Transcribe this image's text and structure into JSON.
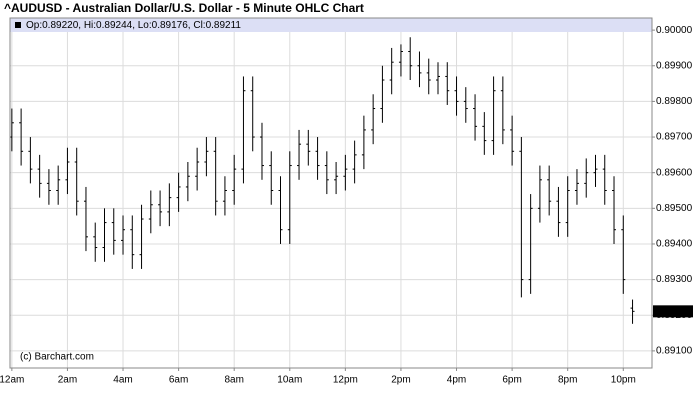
{
  "chart_data": {
    "type": "ohlc",
    "title": "^AUDUSD - Australian Dollar/U.S. Dollar - 5 Minute OHLC Chart",
    "legend_text": "Op:0.89220, Hi:0.89244, Lo:0.89176, Cl:0.89211",
    "credit": "(c) Barchart.com",
    "color": "#000000",
    "grid": true,
    "x": [
      0,
      20,
      40,
      60,
      80,
      100,
      120,
      140,
      160,
      180,
      200,
      220,
      240,
      260,
      280,
      300,
      320,
      340,
      360,
      380,
      400,
      420,
      440,
      460,
      480,
      500,
      520,
      540,
      560,
      580,
      600,
      620,
      640,
      660,
      680,
      700,
      720,
      740,
      760,
      780,
      800,
      820,
      840,
      860,
      880,
      900,
      920,
      940,
      960,
      980,
      1000,
      1020,
      1040,
      1060,
      1080,
      1100,
      1120,
      1140,
      1160,
      1180,
      1200,
      1220,
      1240,
      1260,
      1280,
      1300,
      1320,
      1340
    ],
    "open": [
      0.897,
      0.8974,
      0.8966,
      0.8961,
      0.8957,
      0.8955,
      0.8958,
      0.8963,
      0.8952,
      0.8942,
      0.8939,
      0.8946,
      0.8941,
      0.8944,
      0.8937,
      0.8947,
      0.8951,
      0.8949,
      0.8953,
      0.8956,
      0.8959,
      0.8963,
      0.8966,
      0.8952,
      0.8955,
      0.8961,
      0.8983,
      0.897,
      0.8962,
      0.8955,
      0.8944,
      0.8962,
      0.8968,
      0.8966,
      0.8962,
      0.8958,
      0.8959,
      0.8961,
      0.8965,
      0.8972,
      0.8978,
      0.8986,
      0.8991,
      0.8994,
      0.899,
      0.8988,
      0.8986,
      0.8987,
      0.8983,
      0.898,
      0.8978,
      0.8973,
      0.8969,
      0.8983,
      0.8972,
      0.8966,
      0.893,
      0.895,
      0.8958,
      0.8952,
      0.8946,
      0.8955,
      0.8957,
      0.896,
      0.8961,
      0.8955,
      0.8944,
      0.8922
    ],
    "high": [
      0.8978,
      0.8978,
      0.897,
      0.8965,
      0.8961,
      0.8962,
      0.8967,
      0.8967,
      0.8956,
      0.8946,
      0.895,
      0.895,
      0.8948,
      0.8948,
      0.8951,
      0.8955,
      0.8955,
      0.8957,
      0.896,
      0.8963,
      0.8967,
      0.897,
      0.897,
      0.8959,
      0.8965,
      0.8987,
      0.8987,
      0.8974,
      0.8966,
      0.8959,
      0.8966,
      0.8972,
      0.8972,
      0.897,
      0.8966,
      0.8963,
      0.8965,
      0.8969,
      0.8976,
      0.8982,
      0.899,
      0.8995,
      0.8996,
      0.8998,
      0.8994,
      0.8992,
      0.8991,
      0.8991,
      0.8987,
      0.8984,
      0.8982,
      0.8977,
      0.8987,
      0.8987,
      0.8976,
      0.897,
      0.8954,
      0.8962,
      0.8962,
      0.8956,
      0.8959,
      0.8961,
      0.8964,
      0.8965,
      0.8965,
      0.8959,
      0.8948,
      0.89244
    ],
    "low": [
      0.8966,
      0.8962,
      0.8957,
      0.8953,
      0.8951,
      0.8951,
      0.8954,
      0.8948,
      0.8938,
      0.8935,
      0.8935,
      0.8937,
      0.8937,
      0.8933,
      0.8933,
      0.8943,
      0.8945,
      0.8945,
      0.8949,
      0.8952,
      0.8955,
      0.8959,
      0.8948,
      0.8948,
      0.8951,
      0.8957,
      0.8966,
      0.8958,
      0.8951,
      0.894,
      0.894,
      0.8958,
      0.8962,
      0.8958,
      0.8954,
      0.8954,
      0.8955,
      0.8957,
      0.8961,
      0.8968,
      0.8974,
      0.8982,
      0.8987,
      0.8986,
      0.8984,
      0.8982,
      0.8982,
      0.8979,
      0.8976,
      0.8974,
      0.8969,
      0.8965,
      0.8965,
      0.8968,
      0.8962,
      0.8925,
      0.8926,
      0.8946,
      0.8948,
      0.8942,
      0.8942,
      0.8951,
      0.8953,
      0.8956,
      0.8951,
      0.894,
      0.8926,
      0.89176
    ],
    "close": [
      0.8974,
      0.8966,
      0.8961,
      0.8957,
      0.8955,
      0.8958,
      0.8963,
      0.8952,
      0.8942,
      0.8939,
      0.8946,
      0.8941,
      0.8944,
      0.8937,
      0.8947,
      0.8951,
      0.8949,
      0.8953,
      0.8956,
      0.8959,
      0.8963,
      0.8966,
      0.8952,
      0.8955,
      0.8961,
      0.8983,
      0.897,
      0.8962,
      0.8955,
      0.8944,
      0.8962,
      0.8968,
      0.8966,
      0.8962,
      0.8958,
      0.8959,
      0.8961,
      0.8965,
      0.8972,
      0.8978,
      0.8986,
      0.8991,
      0.8994,
      0.899,
      0.8988,
      0.8986,
      0.8987,
      0.8983,
      0.898,
      0.8978,
      0.8973,
      0.8969,
      0.8983,
      0.8972,
      0.8966,
      0.893,
      0.895,
      0.8958,
      0.8952,
      0.8946,
      0.8955,
      0.8957,
      0.896,
      0.8961,
      0.8955,
      0.8944,
      0.893,
      0.89211
    ],
    "xlim": [
      -4,
      1382
    ],
    "xticks": [
      {
        "value": 0,
        "label": "12am"
      },
      {
        "value": 120,
        "label": "2am"
      },
      {
        "value": 240,
        "label": "4am"
      },
      {
        "value": 360,
        "label": "6am"
      },
      {
        "value": 480,
        "label": "8am"
      },
      {
        "value": 600,
        "label": "10am"
      },
      {
        "value": 720,
        "label": "12pm"
      },
      {
        "value": 840,
        "label": "2pm"
      },
      {
        "value": 960,
        "label": "4pm"
      },
      {
        "value": 1080,
        "label": "6pm"
      },
      {
        "value": 1200,
        "label": "8pm"
      },
      {
        "value": 1320,
        "label": "10pm"
      }
    ],
    "ylim": [
      0.89052,
      0.90034
    ],
    "yticks": [
      {
        "value": 0.891,
        "label": "0.89100"
      },
      {
        "value": 0.892,
        "label": "0.89200"
      },
      {
        "value": 0.893,
        "label": "0.89300"
      },
      {
        "value": 0.894,
        "label": "0.89400"
      },
      {
        "value": 0.895,
        "label": "0.89500"
      },
      {
        "value": 0.896,
        "label": "0.89600"
      },
      {
        "value": 0.897,
        "label": "0.89700"
      },
      {
        "value": 0.898,
        "label": "0.89800"
      },
      {
        "value": 0.899,
        "label": "0.89900"
      },
      {
        "value": 0.9,
        "label": "0.90000"
      }
    ]
  }
}
